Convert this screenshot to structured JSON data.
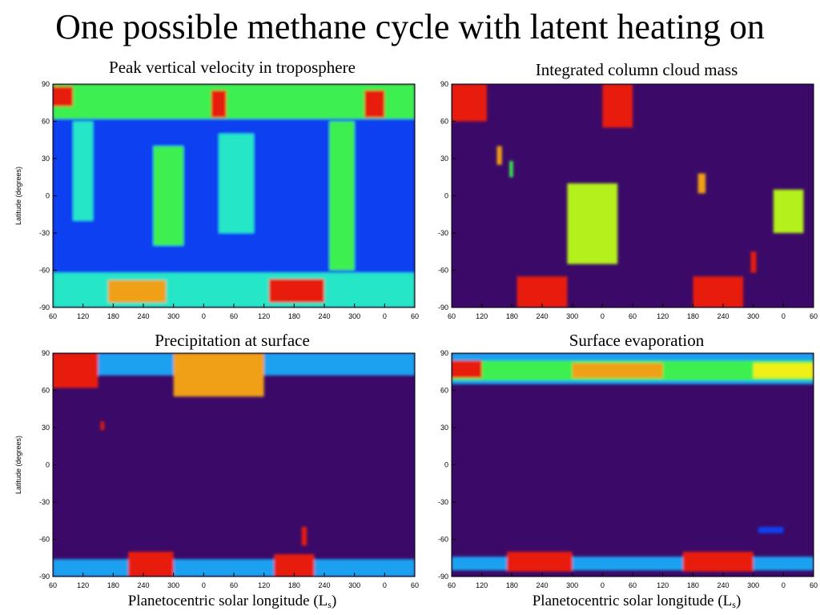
{
  "slide": {
    "title": "One possible methane cycle with latent heating on"
  },
  "colors": {
    "background_field": "#3b0a68",
    "colormap": [
      "#3b0a68",
      "#1a1aa8",
      "#0a3ff0",
      "#1aa0f0",
      "#28e6c8",
      "#3cf050",
      "#b4f01e",
      "#f0f014",
      "#f0a014",
      "#e81e0a"
    ]
  },
  "chart_data": [
    {
      "type": "heatmap",
      "title": "Peak vertical velocity in troposphere",
      "xlabel": "",
      "ylabel": "Latitude (degrees)",
      "xticks": [
        "60",
        "120",
        "180",
        "240",
        "300",
        "0",
        "60",
        "120",
        "180",
        "240",
        "300",
        "0",
        "60"
      ],
      "yticks": [
        "90",
        "60",
        "30",
        "0",
        "-30",
        "-60",
        "-90"
      ],
      "xlim": [
        0,
        720
      ],
      "ylim": [
        -90,
        90
      ],
      "features": [
        {
          "x0": 0,
          "x1": 720,
          "y0": -90,
          "y1": 90,
          "level": 2
        },
        {
          "x0": 0,
          "x1": 720,
          "y0": 62,
          "y1": 90,
          "level": 5
        },
        {
          "x0": 0,
          "x1": 720,
          "y0": -90,
          "y1": -62,
          "level": 4
        },
        {
          "x0": 0,
          "x1": 40,
          "y0": 72,
          "y1": 88,
          "level": 9
        },
        {
          "x0": 315,
          "x1": 345,
          "y0": 63,
          "y1": 85,
          "level": 9
        },
        {
          "x0": 620,
          "x1": 660,
          "y0": 63,
          "y1": 85,
          "level": 9
        },
        {
          "x0": 110,
          "x1": 225,
          "y0": -86,
          "y1": -68,
          "level": 8
        },
        {
          "x0": 430,
          "x1": 540,
          "y0": -86,
          "y1": -67,
          "level": 9
        },
        {
          "x0": 40,
          "x1": 80,
          "y0": -20,
          "y1": 60,
          "level": 4
        },
        {
          "x0": 200,
          "x1": 260,
          "y0": -40,
          "y1": 40,
          "level": 5
        },
        {
          "x0": 550,
          "x1": 600,
          "y0": -60,
          "y1": 60,
          "level": 5
        },
        {
          "x0": 330,
          "x1": 400,
          "y0": -30,
          "y1": 50,
          "level": 4
        }
      ]
    },
    {
      "type": "heatmap",
      "title": "Integrated column cloud mass",
      "xlabel": "",
      "ylabel": "",
      "xticks": [
        "60",
        "120",
        "180",
        "240",
        "300",
        "0",
        "60",
        "120",
        "180",
        "240",
        "300",
        "0",
        "60"
      ],
      "yticks": [
        "90",
        "60",
        "30",
        "0",
        "-30",
        "-60",
        "-90"
      ],
      "xlim": [
        0,
        720
      ],
      "ylim": [
        -90,
        90
      ],
      "features": [
        {
          "x0": 0,
          "x1": 70,
          "y0": 60,
          "y1": 90,
          "level": 9
        },
        {
          "x0": 90,
          "x1": 100,
          "y0": 25,
          "y1": 40,
          "level": 8
        },
        {
          "x0": 115,
          "x1": 122,
          "y0": 15,
          "y1": 28,
          "level": 5
        },
        {
          "x0": 300,
          "x1": 360,
          "y0": 55,
          "y1": 90,
          "level": 9
        },
        {
          "x0": 230,
          "x1": 330,
          "y0": -55,
          "y1": 10,
          "level": 6
        },
        {
          "x0": 490,
          "x1": 505,
          "y0": 2,
          "y1": 18,
          "level": 8
        },
        {
          "x0": 640,
          "x1": 700,
          "y0": -30,
          "y1": 5,
          "level": 6
        },
        {
          "x0": 595,
          "x1": 606,
          "y0": -62,
          "y1": -45,
          "level": 9
        },
        {
          "x0": 130,
          "x1": 230,
          "y0": -90,
          "y1": -65,
          "level": 9
        },
        {
          "x0": 480,
          "x1": 580,
          "y0": -90,
          "y1": -65,
          "level": 9
        }
      ]
    },
    {
      "type": "heatmap",
      "title": "Precipitation at surface",
      "xlabel": "Planetocentric solar longitude (Ls)",
      "ylabel": "Latitude (degrees)",
      "xticks": [
        "60",
        "120",
        "180",
        "240",
        "300",
        "0",
        "60",
        "120",
        "180",
        "240",
        "300",
        "0",
        "60"
      ],
      "yticks": [
        "90",
        "60",
        "30",
        "0",
        "-30",
        "-60",
        "-90"
      ],
      "xlim": [
        0,
        720
      ],
      "ylim": [
        -90,
        90
      ],
      "features": [
        {
          "x0": 0,
          "x1": 720,
          "y0": 72,
          "y1": 90,
          "level": 3
        },
        {
          "x0": 0,
          "x1": 90,
          "y0": 62,
          "y1": 90,
          "level": 9
        },
        {
          "x0": 240,
          "x1": 420,
          "y0": 55,
          "y1": 90,
          "level": 8
        },
        {
          "x0": 95,
          "x1": 102,
          "y0": 28,
          "y1": 35,
          "level": 9
        },
        {
          "x0": 495,
          "x1": 505,
          "y0": -65,
          "y1": -50,
          "level": 9
        },
        {
          "x0": 0,
          "x1": 720,
          "y0": -90,
          "y1": -76,
          "level": 3
        },
        {
          "x0": 150,
          "x1": 240,
          "y0": -90,
          "y1": -70,
          "level": 9
        },
        {
          "x0": 440,
          "x1": 520,
          "y0": -90,
          "y1": -72,
          "level": 9
        }
      ]
    },
    {
      "type": "heatmap",
      "title": "Surface evaporation",
      "xlabel": "Planetocentric solar longitude (Ls)",
      "ylabel": "",
      "xticks": [
        "60",
        "120",
        "180",
        "240",
        "300",
        "0",
        "60",
        "120",
        "180",
        "240",
        "300",
        "0",
        "60"
      ],
      "yticks": [
        "90",
        "60",
        "30",
        "0",
        "-30",
        "-60",
        "-90"
      ],
      "xlim": [
        0,
        720
      ],
      "ylim": [
        -90,
        90
      ],
      "features": [
        {
          "x0": 0,
          "x1": 720,
          "y0": 65,
          "y1": 90,
          "level": 3
        },
        {
          "x0": 0,
          "x1": 720,
          "y0": 68,
          "y1": 84,
          "level": 5
        },
        {
          "x0": 0,
          "x1": 60,
          "y0": 70,
          "y1": 84,
          "level": 9
        },
        {
          "x0": 240,
          "x1": 420,
          "y0": 70,
          "y1": 82,
          "level": 8
        },
        {
          "x0": 600,
          "x1": 720,
          "y0": 70,
          "y1": 82,
          "level": 7
        },
        {
          "x0": 0,
          "x1": 720,
          "y0": -85,
          "y1": -74,
          "level": 3
        },
        {
          "x0": 110,
          "x1": 240,
          "y0": -86,
          "y1": -70,
          "level": 9
        },
        {
          "x0": 460,
          "x1": 600,
          "y0": -86,
          "y1": -70,
          "level": 9
        },
        {
          "x0": 610,
          "x1": 660,
          "y0": -55,
          "y1": -50,
          "level": 2
        }
      ]
    }
  ]
}
